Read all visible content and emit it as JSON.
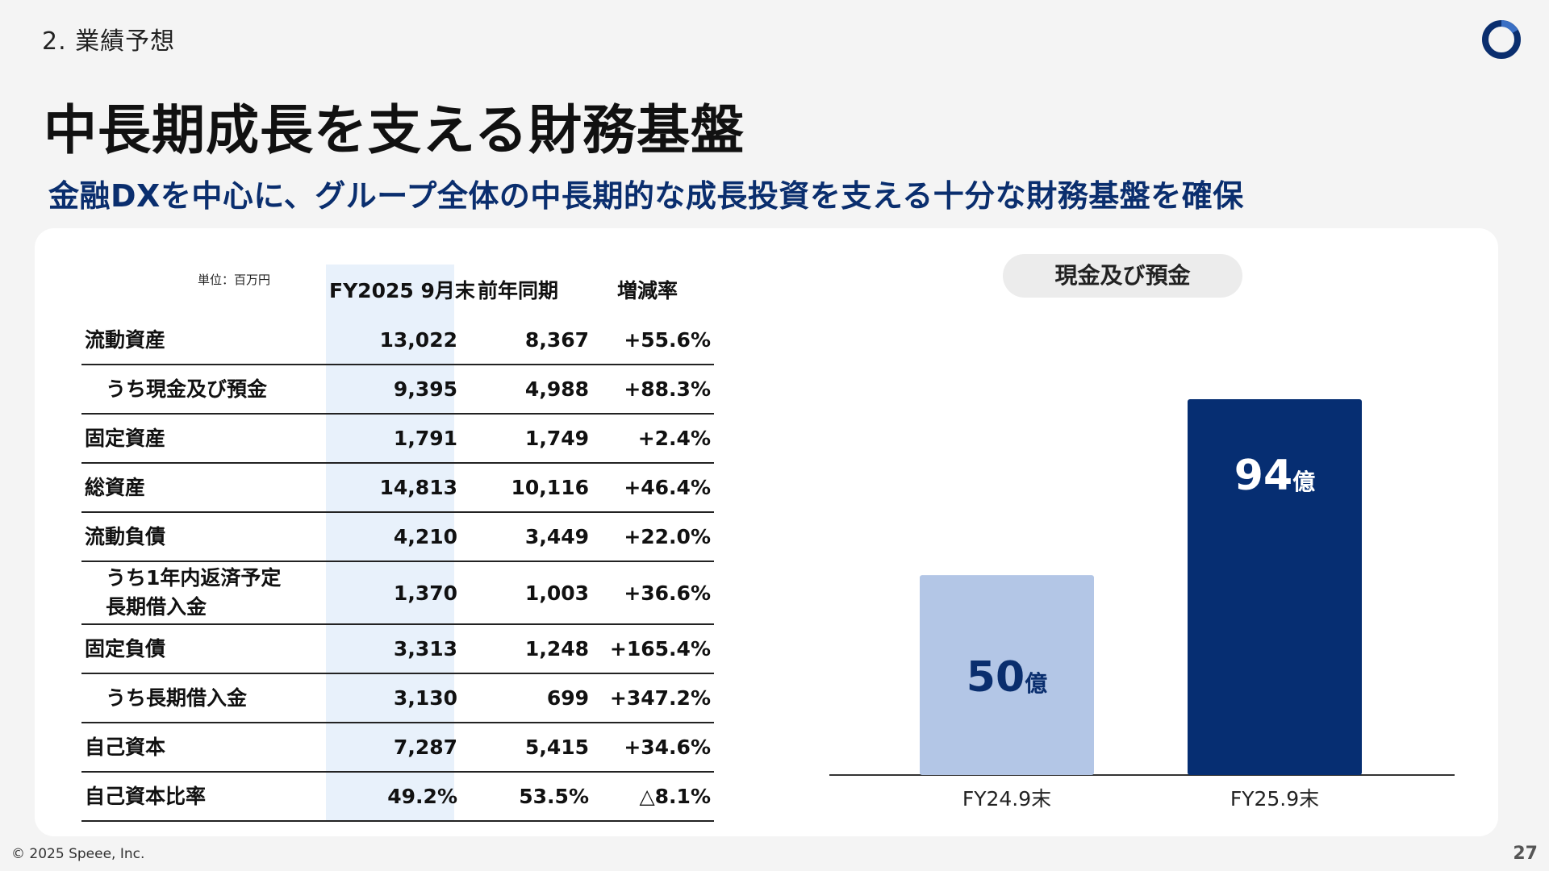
{
  "header": {
    "section": "2. 業績予想",
    "title": "中長期成長を支える財務基盤",
    "subtitle": "金融DXを中心に、グループ全体の中長期的な成長投資を支える十分な財務基盤を確保",
    "logo_icon": "ring-logo-icon"
  },
  "table": {
    "unit": "単位：百万円",
    "columns": [
      "FY2025 9月末",
      "前年同期",
      "増減率"
    ],
    "rows": [
      {
        "label": "流動資産",
        "cur": "13,022",
        "prev": "8,367",
        "chg": "+55.6%"
      },
      {
        "label": "うち現金及び預金",
        "cur": "9,395",
        "prev": "4,988",
        "chg": "+88.3%"
      },
      {
        "label": "固定資産",
        "cur": "1,791",
        "prev": "1,749",
        "chg": "+2.4%"
      },
      {
        "label": "総資産",
        "cur": "14,813",
        "prev": "10,116",
        "chg": "+46.4%"
      },
      {
        "label": "流動負債",
        "cur": "4,210",
        "prev": "3,449",
        "chg": "+22.0%"
      },
      {
        "label": "うち1年内返済予定\n長期借入金",
        "cur": "1,370",
        "prev": "1,003",
        "chg": "+36.6%"
      },
      {
        "label": "固定負債",
        "cur": "3,313",
        "prev": "1,248",
        "chg": "+165.4%"
      },
      {
        "label": "うち長期借入金",
        "cur": "3,130",
        "prev": "699",
        "chg": "+347.2%"
      },
      {
        "label": "自己資本",
        "cur": "7,287",
        "prev": "5,415",
        "chg": "+34.6%"
      },
      {
        "label": "自己資本比率",
        "cur": "49.2%",
        "prev": "53.5%",
        "chg": "△8.1%"
      }
    ]
  },
  "chart_data": {
    "type": "bar",
    "title": "現金及び預金",
    "categories": [
      "FY24.9末",
      "FY25.9末"
    ],
    "values": [
      50,
      94
    ],
    "value_labels": [
      "50",
      "94"
    ],
    "unit_label": "億",
    "colors": [
      "#b3c6e6",
      "#062e72"
    ],
    "label_colors": [
      "#0a2e6e",
      "#ffffff"
    ],
    "ylim": [
      0,
      100
    ]
  },
  "footer": {
    "copyright": "© 2025 Speee, Inc.",
    "page": "27"
  },
  "colors": {
    "accent": "#0a2e6e",
    "highlight_column": "#e8f1fb",
    "background": "#f4f4f4"
  }
}
